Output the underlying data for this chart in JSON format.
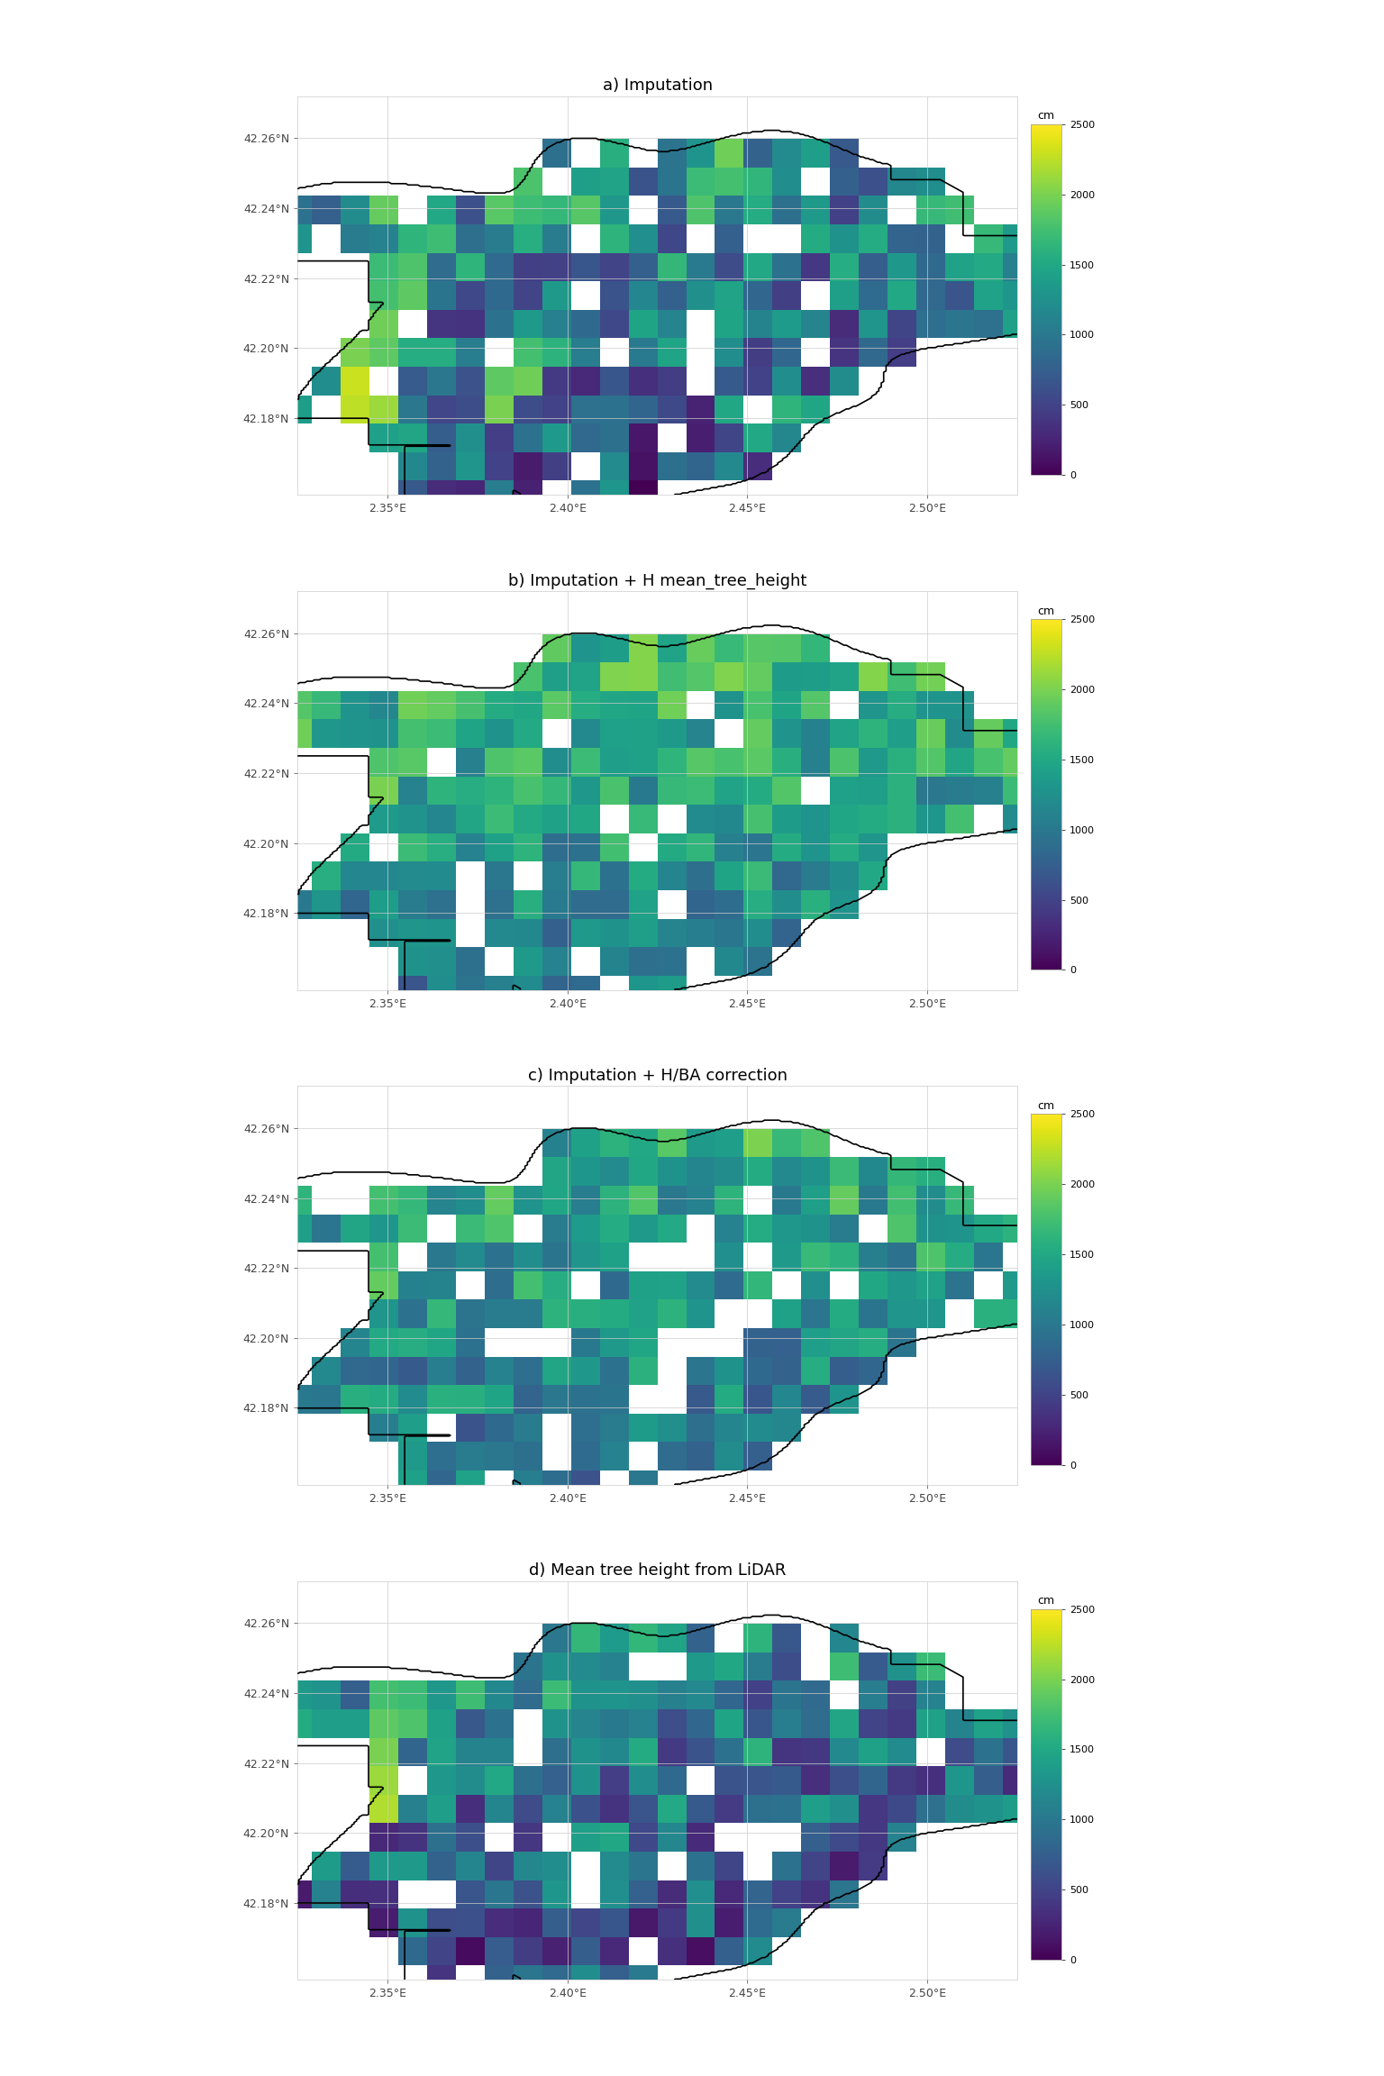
{
  "titles": [
    "a) Imputation",
    "b) Imputation + H mean_tree_height",
    "c) Imputation + H/BA correction",
    "d) Mean tree height from LiDAR"
  ],
  "lon_min": 2.325,
  "lon_max": 2.525,
  "lat_min": 42.158,
  "lat_max": 42.272,
  "vmin": 0,
  "vmax": 2500,
  "cmap": "viridis",
  "colorbar_label": "cm",
  "colorbar_ticks": [
    0,
    500,
    1000,
    1500,
    2000,
    2500
  ],
  "xticks": [
    2.35,
    2.4,
    2.45,
    2.5
  ],
  "yticks": [
    42.18,
    42.2,
    42.22,
    42.24,
    42.26
  ],
  "background_color": "white",
  "axes_bg": "white",
  "grid_color": "#cccccc",
  "grid_linewidth": 0.5,
  "n_lon": 26,
  "n_lat": 15
}
